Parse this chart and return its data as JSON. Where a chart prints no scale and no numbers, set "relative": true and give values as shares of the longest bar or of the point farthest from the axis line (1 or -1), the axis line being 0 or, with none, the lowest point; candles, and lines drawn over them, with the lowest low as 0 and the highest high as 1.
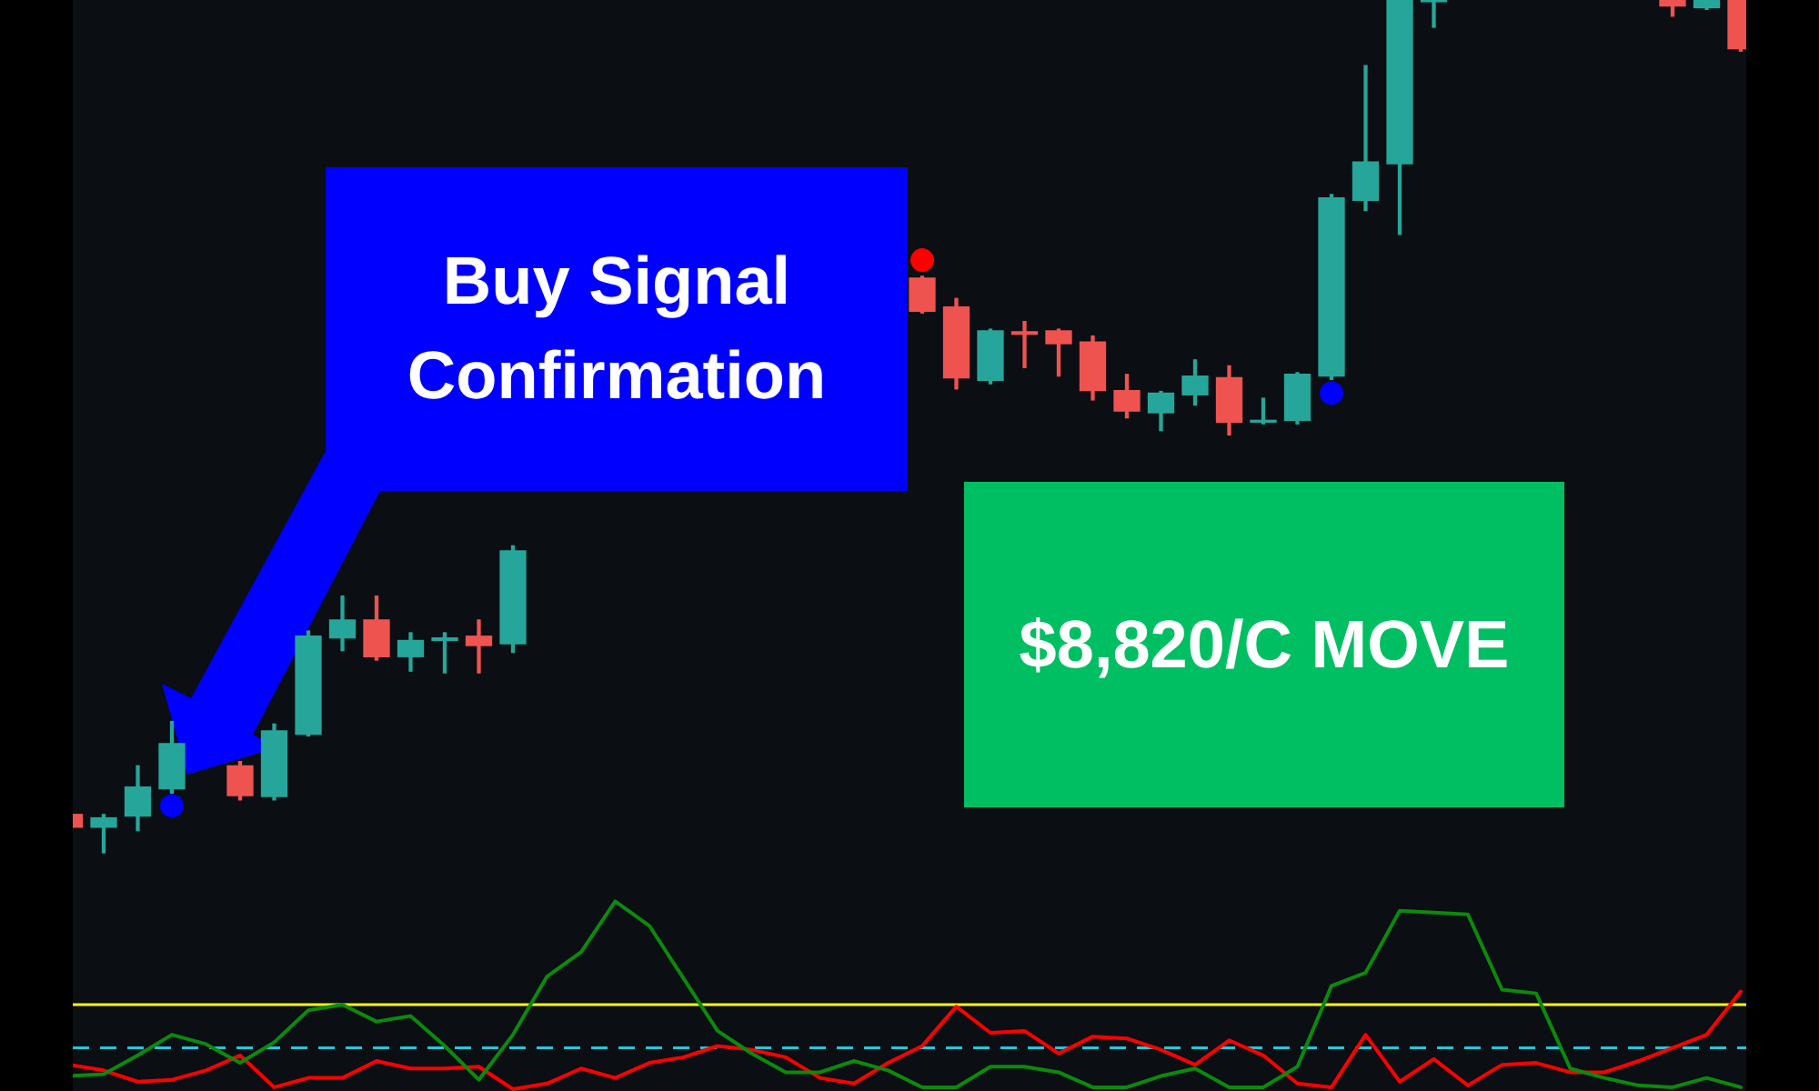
{
  "chart_data": [
    {
      "type": "candlestick",
      "relative": true,
      "categories": [
        null,
        null,
        null,
        null,
        null,
        null,
        null,
        null,
        null,
        null,
        null,
        null,
        null,
        null,
        null,
        null,
        null,
        null,
        null,
        null,
        null,
        null,
        null,
        null,
        null,
        null,
        null,
        null,
        null,
        null,
        null,
        null,
        null,
        null,
        null,
        null,
        null,
        null,
        null,
        null,
        null,
        null,
        null,
        null,
        null,
        null,
        null,
        null,
        null,
        null
      ],
      "ohlc": [
        [
          0.045,
          0.045,
          0.03,
          0.03
        ],
        [
          0.03,
          0.045,
          0,
          0.041
        ],
        [
          0.043,
          0.102,
          0.026,
          0.077
        ],
        [
          0.075,
          0.154,
          0.07,
          0.128
        ],
        null,
        [
          0.102,
          0.107,
          0.062,
          0.067
        ],
        [
          0.066,
          0.151,
          0.062,
          0.143
        ],
        [
          0.139,
          0.26,
          0.137,
          0.254
        ],
        [
          0.252,
          0.301,
          0.237,
          0.273
        ],
        [
          0.273,
          0.301,
          0.226,
          0.23
        ],
        [
          0.23,
          0.258,
          0.213,
          0.249
        ],
        [
          0.249,
          0.258,
          0.211,
          0.252
        ],
        [
          0.254,
          0.273,
          0.211,
          0.243
        ],
        [
          0.245,
          0.36,
          0.235,
          0.354
        ],
        null,
        null,
        null,
        null,
        null,
        null,
        null,
        null,
        null,
        null,
        null,
        [
          0.674,
          0.676,
          0.633,
          0.635
        ],
        [
          0.64,
          0.65,
          0.544,
          0.557
        ],
        [
          0.554,
          0.614,
          0.55,
          0.612
        ],
        [
          0.611,
          0.623,
          0.569,
          0.608
        ],
        [
          0.612,
          0.614,
          0.559,
          0.597
        ],
        [
          0.599,
          0.606,
          0.531,
          0.542
        ],
        [
          0.542,
          0.561,
          0.51,
          0.518
        ],
        [
          0.516,
          0.541,
          0.495,
          0.539
        ],
        [
          0.537,
          0.578,
          0.525,
          0.559
        ],
        [
          0.557,
          0.571,
          0.49,
          0.505
        ],
        [
          0.505,
          0.533,
          0.503,
          0.507
        ],
        [
          0.507,
          0.563,
          0.503,
          0.561
        ],
        [
          0.559,
          0.772,
          0.555,
          0.768
        ],
        [
          0.765,
          0.923,
          0.753,
          0.81
        ],
        [
          0.808,
          1,
          0.725,
          1
        ],
        [
          0.998,
          1,
          0.968,
          1
        ],
        null,
        null,
        null,
        null,
        null,
        null,
        [
          1,
          1,
          0.981,
          0.993
        ],
        [
          0.991,
          1,
          0.989,
          1
        ],
        [
          1,
          1,
          0.94,
          0.943
        ]
      ],
      "colors": [
        "#ef5350",
        "#26a69a",
        "#26a69a",
        "#26a69a",
        null,
        "#ef5350",
        "#26a69a",
        "#26a69a",
        "#26a69a",
        "#ef5350",
        "#26a69a",
        "#26a69a",
        "#ef5350",
        "#26a69a",
        null,
        null,
        null,
        null,
        null,
        null,
        null,
        null,
        null,
        null,
        null,
        "#ef5350",
        "#ef5350",
        "#26a69a",
        "#ef5350",
        "#ef5350",
        "#ef5350",
        "#ef5350",
        "#26a69a",
        "#26a69a",
        "#ef5350",
        "#26a69a",
        "#26a69a",
        "#26a69a",
        "#26a69a",
        "#26a69a",
        "#26a69a",
        null,
        null,
        null,
        null,
        null,
        null,
        "#ef5350",
        "#26a69a",
        "#ef5350"
      ],
      "series": [
        {
          "type": "scatter",
          "color": "#0000ff",
          "values": [
            null,
            null,
            null,
            0.055,
            null,
            null,
            null,
            null,
            null,
            null,
            null,
            null,
            null,
            null,
            null,
            null,
            null,
            null,
            null,
            null,
            null,
            null,
            null,
            null,
            null,
            null,
            null,
            null,
            null,
            null,
            null,
            null,
            null,
            null,
            null,
            null,
            null,
            0.539,
            null,
            null,
            null,
            null,
            null,
            null,
            null,
            null,
            null,
            null,
            null,
            null
          ]
        },
        {
          "type": "scatter",
          "color": "#ff0000",
          "values": [
            null,
            null,
            null,
            null,
            null,
            null,
            null,
            null,
            null,
            null,
            null,
            null,
            null,
            null,
            null,
            null,
            null,
            null,
            null,
            null,
            null,
            null,
            null,
            null,
            null,
            0.695,
            null,
            null,
            null,
            null,
            null,
            null,
            null,
            null,
            null,
            null,
            null,
            null,
            null,
            null,
            null,
            null,
            null,
            null,
            null,
            null,
            null,
            null,
            null,
            null
          ]
        }
      ],
      "marker": "circle",
      "annotations": [
        "Buy Signal Confirmation",
        "$8,820/C MOVE"
      ]
    },
    {
      "type": "line",
      "relative": true,
      "categories": [
        null,
        null,
        null,
        null,
        null,
        null,
        null,
        null,
        null,
        null,
        null,
        null,
        null,
        null,
        null,
        null,
        null,
        null,
        null,
        null,
        null,
        null,
        null,
        null,
        null,
        null,
        null,
        null,
        null,
        null,
        null,
        null,
        null,
        null,
        null,
        null,
        null,
        null,
        null,
        null,
        null,
        null,
        null,
        null,
        null,
        null,
        null,
        null,
        null,
        null
      ],
      "series": [
        {
          "color": "#0b8a0b",
          "values": [
            0.07,
            0.08,
            0.18,
            0.29,
            0.24,
            0.14,
            0.25,
            0.42,
            0.45,
            0.36,
            0.39,
            0.23,
            0.05,
            0.29,
            0.6,
            0.73,
            1,
            0.87,
            0.59,
            0.31,
            0.19,
            0.09,
            0.09,
            0.15,
            0.1,
            0.01,
            0.01,
            0.12,
            0.12,
            0.09,
            0.01,
            0.01,
            0.07,
            0.11,
            0.01,
            0.01,
            0.12,
            0.55,
            0.62,
            0.95,
            0.94,
            0.93,
            0.53,
            0.51,
            0.11,
            0.06,
            0.02,
            0.01,
            0.06,
            0.01
          ]
        },
        {
          "color": "#ff0000",
          "values": [
            0.13,
            0.1,
            0.04,
            0.05,
            0.1,
            0.18,
            0.01,
            0.06,
            0.06,
            0.15,
            0.11,
            0.11,
            0.12,
            0,
            0.03,
            0.11,
            0.06,
            0.14,
            0.17,
            0.23,
            0.21,
            0.17,
            0.06,
            0.03,
            0.14,
            0.23,
            0.44,
            0.3,
            0.31,
            0.19,
            0.28,
            0.27,
            0.21,
            0.13,
            0.26,
            0.18,
            0.03,
            0.01,
            0.29,
            0.04,
            0.16,
            0.02,
            0.13,
            0.14,
            0.09,
            0.09,
            0.15,
            0.22,
            0.29,
            0.52
          ]
        }
      ],
      "ref_lines": [
        {
          "axis": "y",
          "value": 0.45,
          "color": "#ffff00"
        },
        {
          "axis": "y",
          "value": 0.22,
          "color": "#22c7d9",
          "line_style": "dashed"
        }
      ]
    }
  ]
}
